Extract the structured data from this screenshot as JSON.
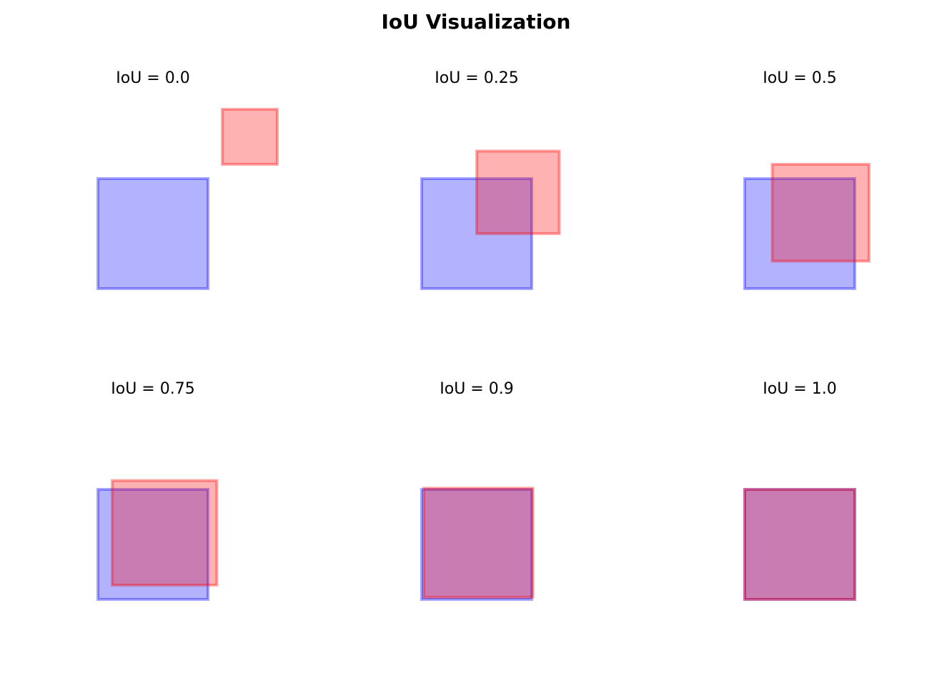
{
  "figure": {
    "title": "IoU Visualization"
  },
  "colors": {
    "box_a": "#0000ff",
    "box_b": "#ff0000"
  },
  "chart_data": [
    {
      "type": "diagram",
      "title": "IoU = 0.0",
      "iou": 0.0,
      "box_a": [
        0,
        0,
        1,
        1
      ],
      "box_b": [
        1.13,
        1.13,
        0.5,
        0.5
      ]
    },
    {
      "type": "diagram",
      "title": "IoU = 0.25",
      "iou": 0.25,
      "box_a": [
        0,
        0,
        1,
        1
      ],
      "box_b": [
        0.5,
        0.5,
        0.75,
        0.75
      ]
    },
    {
      "type": "diagram",
      "title": "IoU = 0.5",
      "iou": 0.5,
      "box_a": [
        0,
        0,
        1,
        1
      ],
      "box_b": [
        0.25,
        0.25,
        0.88,
        0.88
      ]
    },
    {
      "type": "diagram",
      "title": "IoU = 0.75",
      "iou": 0.75,
      "box_a": [
        0,
        0,
        1,
        1
      ],
      "box_b": [
        0.13,
        0.13,
        0.95,
        0.95
      ]
    },
    {
      "type": "diagram",
      "title": "IoU = 0.9",
      "iou": 0.9,
      "box_a": [
        0,
        0,
        1,
        1
      ],
      "box_b": [
        0.02,
        0.02,
        0.99,
        0.99
      ]
    },
    {
      "type": "diagram",
      "title": "IoU = 1.0",
      "iou": 1.0,
      "box_a": [
        0,
        0,
        1,
        1
      ],
      "box_b": [
        0,
        0,
        1,
        1
      ]
    }
  ]
}
